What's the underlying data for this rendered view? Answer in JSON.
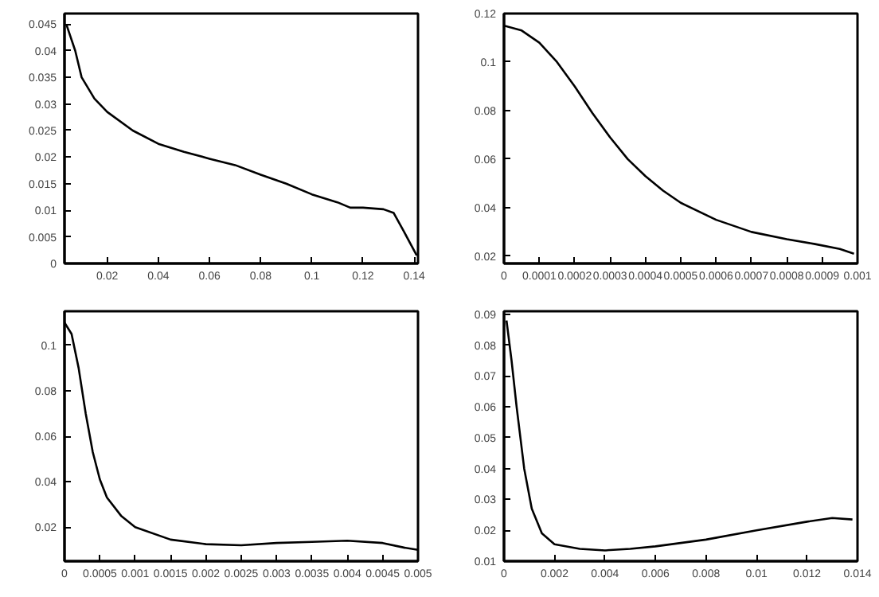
{
  "chart_data": [
    {
      "type": "line",
      "x": [
        0.004,
        0.0075,
        0.01,
        0.015,
        0.02,
        0.03,
        0.04,
        0.05,
        0.06,
        0.07,
        0.08,
        0.09,
        0.1,
        0.11,
        0.115,
        0.12,
        0.128,
        0.132,
        0.136,
        0.141
      ],
      "series": [
        {
          "color": "#000000",
          "values": [
            0.045,
            0.04,
            0.035,
            0.031,
            0.0285,
            0.025,
            0.0225,
            0.021,
            0.0197,
            0.0185,
            0.0167,
            0.015,
            0.013,
            0.0115,
            0.0105,
            0.0105,
            0.0102,
            0.0095,
            0.006,
            0.0015
          ]
        }
      ],
      "xlim": [
        0.0033,
        0.1415
      ],
      "ylim": [
        0,
        0.047
      ],
      "xticks": [
        0.02,
        0.04,
        0.06,
        0.08,
        0.1,
        0.12,
        0.14
      ],
      "yticks": [
        0,
        0.005,
        0.01,
        0.015,
        0.02,
        0.025,
        0.03,
        0.035,
        0.04,
        0.045
      ],
      "grid": false
    },
    {
      "type": "line",
      "x": [
        0,
        5e-05,
        0.0001,
        0.00015,
        0.0002,
        0.00025,
        0.0003,
        0.00035,
        0.0004,
        0.00045,
        0.0005,
        0.0006,
        0.0007,
        0.0008,
        0.00088,
        0.00095,
        0.00099
      ],
      "series": [
        {
          "color": "#000000",
          "values": [
            0.115,
            0.113,
            0.108,
            0.1,
            0.09,
            0.079,
            0.069,
            0.06,
            0.053,
            0.047,
            0.042,
            0.035,
            0.03,
            0.027,
            0.025,
            0.023,
            0.021
          ]
        }
      ],
      "xlim": [
        0,
        0.001
      ],
      "ylim": [
        0.017,
        0.12
      ],
      "xticks": [
        0,
        0.0001,
        0.0002,
        0.0003,
        0.0004,
        0.0005,
        0.0006,
        0.0007,
        0.0008,
        0.0009,
        0.001
      ],
      "yticks": [
        0.02,
        0.04,
        0.06,
        0.08,
        0.1,
        0.12
      ],
      "grid": false
    },
    {
      "type": "line",
      "x": [
        0,
        0.0001,
        0.0002,
        0.0003,
        0.0004,
        0.0005,
        0.0006,
        0.0008,
        0.001,
        0.0015,
        0.002,
        0.0025,
        0.003,
        0.0035,
        0.004,
        0.0045,
        0.0048,
        0.005
      ],
      "series": [
        {
          "color": "#000000",
          "values": [
            0.11,
            0.105,
            0.09,
            0.07,
            0.053,
            0.041,
            0.033,
            0.025,
            0.02,
            0.0145,
            0.0125,
            0.012,
            0.013,
            0.0135,
            0.014,
            0.013,
            0.011,
            0.01
          ]
        }
      ],
      "xlim": [
        0,
        0.005
      ],
      "ylim": [
        0.005,
        0.115
      ],
      "xticks": [
        0,
        0.0005,
        0.001,
        0.0015,
        0.002,
        0.0025,
        0.003,
        0.0035,
        0.004,
        0.0045,
        0.005
      ],
      "yticks": [
        0.02,
        0.04,
        0.06,
        0.08,
        0.1
      ],
      "grid": false
    },
    {
      "type": "line",
      "x": [
        0.0001,
        0.0003,
        0.0005,
        0.0008,
        0.0011,
        0.0015,
        0.002,
        0.003,
        0.004,
        0.005,
        0.006,
        0.008,
        0.01,
        0.012,
        0.013,
        0.0138
      ],
      "series": [
        {
          "color": "#000000",
          "values": [
            0.088,
            0.075,
            0.06,
            0.04,
            0.027,
            0.019,
            0.0155,
            0.014,
            0.0135,
            0.014,
            0.0148,
            0.017,
            0.02,
            0.0228,
            0.024,
            0.0235
          ]
        }
      ],
      "xlim": [
        0,
        0.014
      ],
      "ylim": [
        0.01,
        0.091
      ],
      "xticks": [
        0,
        0.002,
        0.004,
        0.006,
        0.008,
        0.01,
        0.012,
        0.014
      ],
      "yticks": [
        0.01,
        0.02,
        0.03,
        0.04,
        0.05,
        0.06,
        0.07,
        0.08,
        0.09
      ],
      "grid": false
    }
  ]
}
